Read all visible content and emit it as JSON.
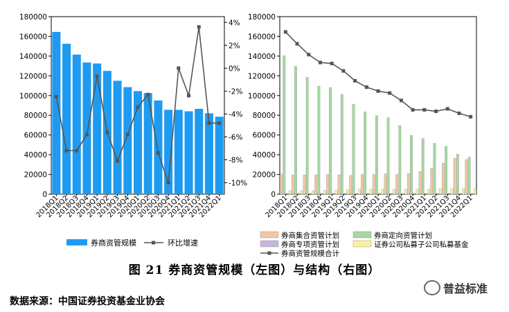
{
  "chart_data": [
    {
      "type": "bar",
      "categories": [
        "2018Q1",
        "2018Q2",
        "2018Q3",
        "2018Q4",
        "2019Q1",
        "2019Q2",
        "2019Q3",
        "2019Q4",
        "2020Q1",
        "2020Q2",
        "2020Q3",
        "2020Q4",
        "2021Q1",
        "2021Q2",
        "2021Q3",
        "2021Q4",
        "2022Q1"
      ],
      "series": [
        {
          "name": "券商资管规模",
          "type": "bar",
          "axis": "left",
          "values": [
            164500,
            152500,
            141500,
            133500,
            132500,
            125000,
            115000,
            108500,
            104500,
            102500,
            95000,
            85500,
            85500,
            84000,
            86500,
            82000,
            78500
          ]
        },
        {
          "name": "环比增速",
          "type": "line",
          "axis": "right",
          "unit": "%",
          "values": [
            -2.5,
            -7.2,
            -7.2,
            -5.8,
            -0.7,
            -5.6,
            -8.1,
            -5.8,
            -3.4,
            -2.3,
            -7.4,
            -10.0,
            0.0,
            -2.4,
            3.6,
            -4.8,
            -4.8
          ]
        }
      ],
      "ylim_left": [
        0,
        180000
      ],
      "yticks_left": [
        "0",
        "20000",
        "40000",
        "60000",
        "80000",
        "100000",
        "120000",
        "140000",
        "160000",
        "180000"
      ],
      "ylim_right": [
        -11,
        4.5
      ],
      "yticks_right": [
        "4%",
        "2%",
        "0%",
        "-2%",
        "-4%",
        "-6%",
        "-8%",
        "-10%"
      ],
      "colors": {
        "bar": "#1e9bf0",
        "line": "#555555"
      },
      "legend_position": "bottom"
    },
    {
      "type": "bar",
      "categories": [
        "2018Q1",
        "2018Q2",
        "2018Q3",
        "2018Q4",
        "2019Q1",
        "2019Q2",
        "2019Q3",
        "2019Q4",
        "2020Q1",
        "2020Q2",
        "2020Q3",
        "2020Q4",
        "2021Q1",
        "2021Q2",
        "2021Q3",
        "2021Q4",
        "2022Q1"
      ],
      "series": [
        {
          "name": "券商集合资管计划",
          "type": "bar",
          "values": [
            20500,
            19500,
            19500,
            19500,
            20000,
            19500,
            19000,
            20000,
            20000,
            20500,
            20000,
            21000,
            23000,
            26500,
            31500,
            36500,
            35000
          ]
        },
        {
          "name": "券商定向资管计划",
          "type": "bar",
          "values": [
            140500,
            129500,
            118500,
            109500,
            108000,
            101000,
            91000,
            83500,
            79500,
            77500,
            69500,
            59500,
            56500,
            51500,
            48500,
            40500,
            37500
          ]
        },
        {
          "name": "券商专项资管计划",
          "type": "bar",
          "values": [
            0,
            0,
            0,
            0,
            0,
            0,
            0,
            0,
            0,
            0,
            0,
            0,
            0,
            0,
            0,
            0,
            0
          ]
        },
        {
          "name": "证券公司私募子公司私募基金",
          "type": "bar",
          "values": [
            3500,
            3500,
            3500,
            4000,
            4000,
            4500,
            5000,
            5000,
            5000,
            5000,
            5000,
            5000,
            5000,
            5500,
            5500,
            5500,
            5500
          ]
        },
        {
          "name": "券商资管规模合计",
          "type": "line",
          "values": [
            164500,
            152500,
            141500,
            133500,
            132500,
            125000,
            115000,
            108500,
            104500,
            102500,
            95000,
            85500,
            85500,
            84000,
            86500,
            82000,
            78500
          ]
        }
      ],
      "ylim": [
        0,
        180000
      ],
      "yticks": [
        "0",
        "20000",
        "40000",
        "60000",
        "80000",
        "100000",
        "120000",
        "140000",
        "160000",
        "180000"
      ],
      "colors": {
        "集合": "#f4c7a0",
        "定向": "#a4d9a0",
        "专项": "#c8b4e0",
        "私募": "#faf0a0",
        "line": "#555555"
      },
      "legend_position": "bottom"
    }
  ],
  "caption": "图  21   券商资管规模（左图）与结构（右图）",
  "source": "数据来源：中国证券投资基金业协会",
  "watermark": "普益标准"
}
